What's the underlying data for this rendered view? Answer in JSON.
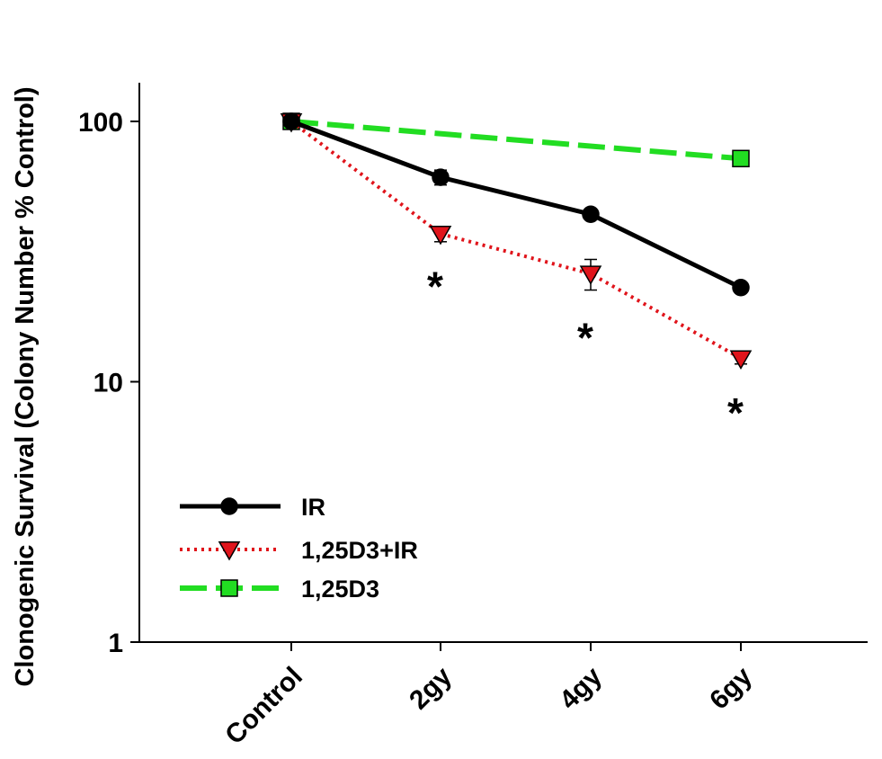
{
  "chart_data": {
    "type": "line",
    "title": "",
    "xlabel": "",
    "ylabel": "Clonogenic Survival (Colony Number % Control)",
    "yscale": "log",
    "ylim": [
      1,
      100
    ],
    "yticks": [
      1,
      10,
      100
    ],
    "ytick_labels": [
      "1",
      "10",
      "100"
    ],
    "categories": [
      "Control",
      "2gy",
      "4gy",
      "6gy"
    ],
    "legend_position": "lower-left",
    "grid": false,
    "series": [
      {
        "name": "IR",
        "color": "#000000",
        "line_style": "solid",
        "marker": "circle",
        "values": [
          100,
          61,
          44,
          23
        ],
        "errors": [
          1.5,
          4,
          1.5,
          1
        ]
      },
      {
        "name": "1,25D3+IR",
        "color": "#e0141b",
        "line_style": "dotted",
        "marker": "triangle-down",
        "values": [
          100,
          37,
          26,
          12.3
        ],
        "errors": [
          1.5,
          2.5,
          3.5,
          0.6
        ]
      },
      {
        "name": "1,25D3",
        "color": "#22dd22",
        "line_style": "dashed",
        "marker": "square",
        "values": [
          100,
          null,
          null,
          72
        ],
        "errors": [
          1.5,
          null,
          null,
          2
        ]
      }
    ],
    "annotations": [
      {
        "text": "*",
        "category": "2gy",
        "value": 26
      },
      {
        "text": "*",
        "category": "4gy",
        "value": 16.5
      },
      {
        "text": "*",
        "category": "6gy",
        "value": 8.5
      }
    ]
  }
}
